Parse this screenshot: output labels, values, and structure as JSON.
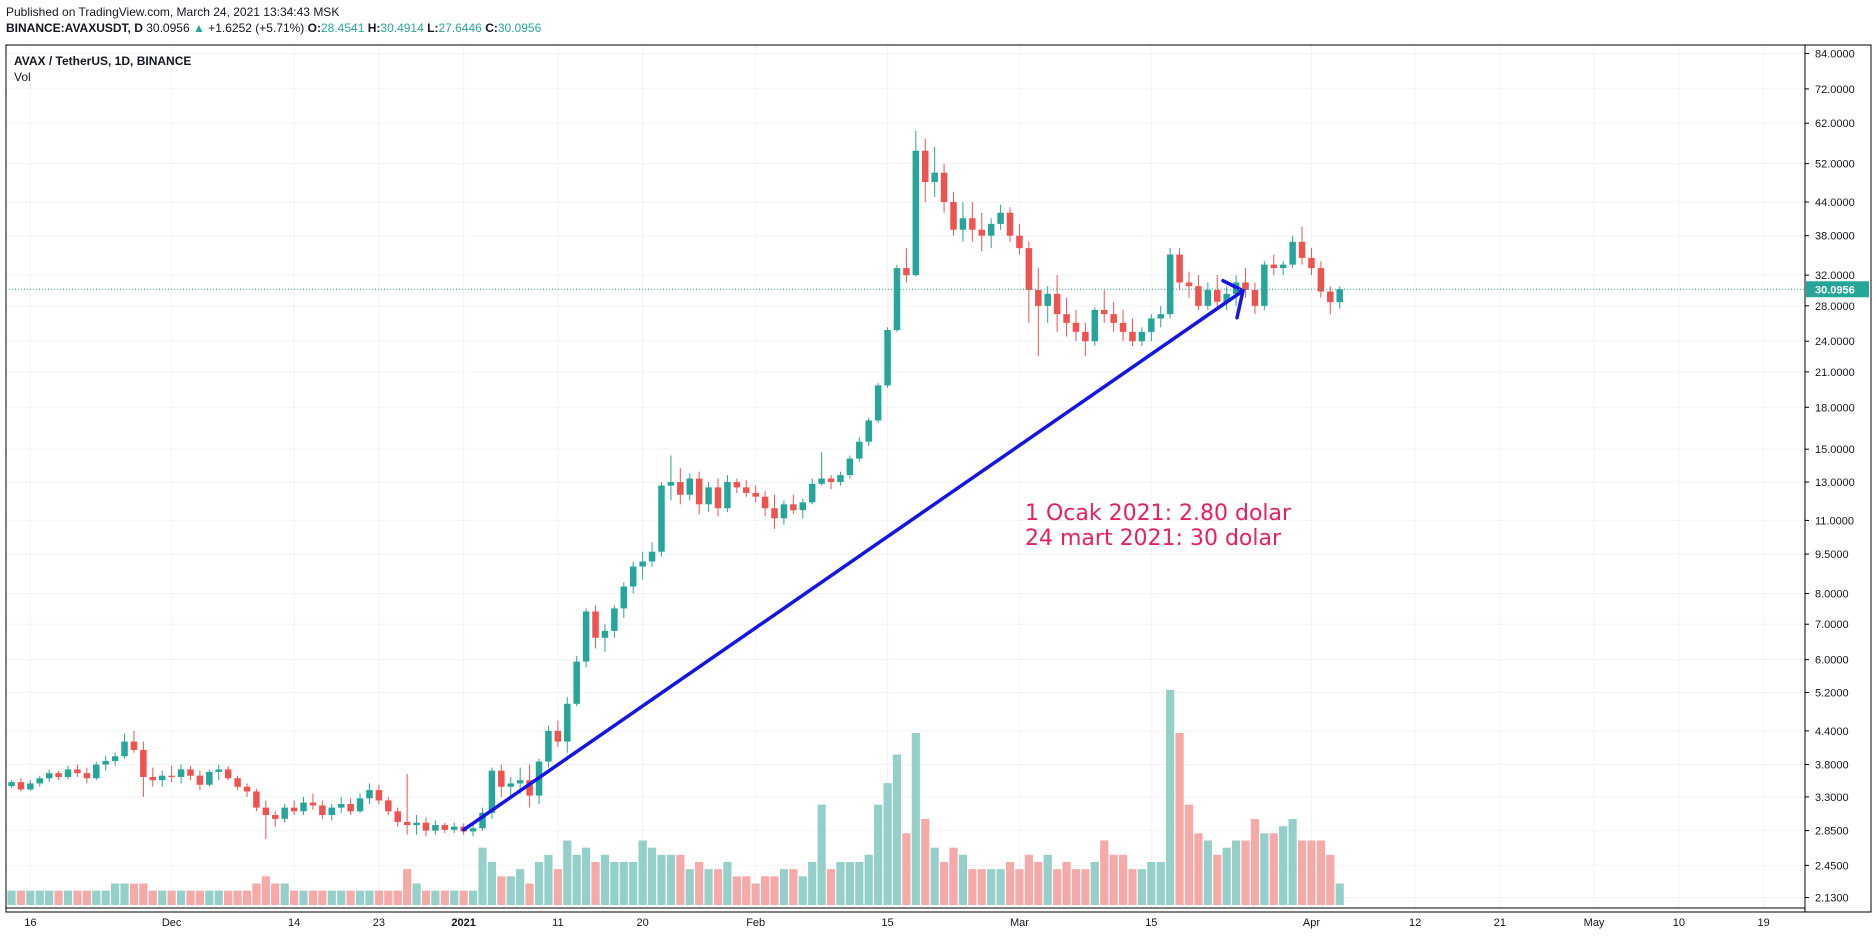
{
  "header": {
    "published": "Published on TradingView.com, March 24, 2021 13:34:43 MSK",
    "symbol": "BINANCE:AVAXUSDT, D",
    "last": "30.0956",
    "change_arrow": "▲",
    "change": "+1.6252 (+5.71%)",
    "o_label": "O:",
    "o": "28.4541",
    "h_label": "H:",
    "h": "30.4914",
    "l_label": "L:",
    "l": "27.6446",
    "c_label": "C:",
    "c": "30.0956"
  },
  "legend": {
    "title": "AVAX / TetherUS, 1D, BINANCE",
    "vol": "Vol"
  },
  "annotation": {
    "line1": "1 Ocak 2021: 2.80 dolar",
    "line2": "24 mart 2021: 30 dolar",
    "color": "#e91e63"
  },
  "colors": {
    "up": "#26a69a",
    "down": "#ef5350",
    "vol_up": "#94cfc9",
    "vol_down": "#f5a9a8",
    "trend": "#1414e6",
    "price_badge": "#26a69a"
  },
  "chart_data": {
    "type": "candlestick",
    "scale": "log",
    "y_ticks": [
      "84.0000",
      "72.0000",
      "62.0000",
      "52.0000",
      "44.0000",
      "38.0000",
      "32.0000",
      "28.0000",
      "24.0000",
      "21.0000",
      "18.0000",
      "15.0000",
      "13.0000",
      "11.0000",
      "9.5000",
      "8.0000",
      "7.0000",
      "6.0000",
      "5.2000",
      "4.4000",
      "3.8000",
      "3.3000",
      "2.8500",
      "2.4500",
      "2.1300"
    ],
    "x_ticks": [
      "16",
      "Dec",
      "14",
      "23",
      "2021",
      "11",
      "20",
      "Feb",
      "15",
      "Mar",
      "15",
      "Apr",
      "12",
      "21",
      "May",
      "10",
      "19"
    ],
    "x_tick_dates": [
      "2020-11-16",
      "2020-12-01",
      "2020-12-14",
      "2020-12-23",
      "2021-01-01",
      "2021-01-11",
      "2021-01-20",
      "2021-02-01",
      "2021-02-15",
      "2021-03-01",
      "2021-03-15",
      "2021-04-01",
      "2021-04-12",
      "2021-04-21",
      "2021-05-01",
      "2021-05-10",
      "2021-05-19"
    ],
    "last_price": "30.0956",
    "start_date": "2020-11-14",
    "candles": [
      [
        3.46,
        3.55,
        3.43,
        3.52,
        2
      ],
      [
        3.52,
        3.58,
        3.38,
        3.41,
        2
      ],
      [
        3.41,
        3.55,
        3.39,
        3.5,
        2
      ],
      [
        3.5,
        3.62,
        3.45,
        3.58,
        2
      ],
      [
        3.58,
        3.72,
        3.52,
        3.66,
        2
      ],
      [
        3.66,
        3.7,
        3.55,
        3.6,
        2
      ],
      [
        3.6,
        3.78,
        3.56,
        3.72,
        2
      ],
      [
        3.72,
        3.8,
        3.6,
        3.66,
        2
      ],
      [
        3.66,
        3.75,
        3.5,
        3.58,
        2
      ],
      [
        3.58,
        3.85,
        3.55,
        3.8,
        2
      ],
      [
        3.8,
        3.95,
        3.7,
        3.86,
        2
      ],
      [
        3.86,
        4.0,
        3.78,
        3.94,
        3
      ],
      [
        3.94,
        4.35,
        3.9,
        4.2,
        3
      ],
      [
        4.2,
        4.4,
        4.0,
        4.05,
        3
      ],
      [
        4.05,
        4.2,
        3.3,
        3.6,
        3
      ],
      [
        3.6,
        3.75,
        3.45,
        3.55,
        2
      ],
      [
        3.55,
        3.7,
        3.45,
        3.62,
        2
      ],
      [
        3.62,
        3.78,
        3.52,
        3.6,
        2
      ],
      [
        3.6,
        3.8,
        3.5,
        3.72,
        2
      ],
      [
        3.72,
        3.78,
        3.55,
        3.62,
        2
      ],
      [
        3.62,
        3.7,
        3.4,
        3.48,
        2
      ],
      [
        3.48,
        3.72,
        3.45,
        3.68,
        2
      ],
      [
        3.68,
        3.8,
        3.55,
        3.72,
        2
      ],
      [
        3.72,
        3.78,
        3.55,
        3.58,
        2
      ],
      [
        3.58,
        3.62,
        3.4,
        3.45,
        2
      ],
      [
        3.45,
        3.5,
        3.3,
        3.38,
        2
      ],
      [
        3.38,
        3.42,
        3.1,
        3.15,
        3
      ],
      [
        3.15,
        3.25,
        2.75,
        3.05,
        4
      ],
      [
        3.05,
        3.1,
        2.9,
        3.0,
        3
      ],
      [
        3.0,
        3.2,
        2.95,
        3.15,
        3
      ],
      [
        3.15,
        3.25,
        3.05,
        3.1,
        2
      ],
      [
        3.1,
        3.3,
        3.05,
        3.22,
        2
      ],
      [
        3.22,
        3.35,
        3.12,
        3.18,
        2
      ],
      [
        3.18,
        3.25,
        3.0,
        3.05,
        2
      ],
      [
        3.05,
        3.2,
        2.98,
        3.15,
        2
      ],
      [
        3.15,
        3.3,
        3.08,
        3.2,
        2
      ],
      [
        3.2,
        3.28,
        3.05,
        3.1,
        2
      ],
      [
        3.1,
        3.35,
        3.08,
        3.28,
        2
      ],
      [
        3.28,
        3.5,
        3.2,
        3.4,
        2
      ],
      [
        3.4,
        3.48,
        3.2,
        3.25,
        2
      ],
      [
        3.25,
        3.3,
        3.05,
        3.1,
        2
      ],
      [
        3.1,
        3.15,
        2.9,
        2.96,
        2
      ],
      [
        2.96,
        3.65,
        2.8,
        2.92,
        5
      ],
      [
        2.92,
        3.05,
        2.8,
        2.95,
        3
      ],
      [
        2.95,
        3.02,
        2.78,
        2.85,
        2
      ],
      [
        2.85,
        2.98,
        2.8,
        2.92,
        2
      ],
      [
        2.92,
        2.95,
        2.82,
        2.86,
        2
      ],
      [
        2.86,
        2.95,
        2.82,
        2.9,
        2
      ],
      [
        2.9,
        2.94,
        2.8,
        2.84,
        2
      ],
      [
        2.84,
        2.92,
        2.78,
        2.88,
        2
      ],
      [
        2.88,
        3.15,
        2.85,
        3.08,
        8
      ],
      [
        3.08,
        3.75,
        3.0,
        3.7,
        6
      ],
      [
        3.7,
        3.8,
        3.3,
        3.45,
        4
      ],
      [
        3.45,
        3.6,
        3.3,
        3.5,
        4
      ],
      [
        3.5,
        3.75,
        3.35,
        3.55,
        5
      ],
      [
        3.55,
        3.8,
        3.15,
        3.32,
        3
      ],
      [
        3.32,
        3.9,
        3.2,
        3.85,
        6
      ],
      [
        3.85,
        4.5,
        3.75,
        4.4,
        7
      ],
      [
        4.4,
        4.6,
        4.1,
        4.2,
        5
      ],
      [
        4.2,
        5.1,
        4.0,
        4.95,
        9
      ],
      [
        4.95,
        6.1,
        4.9,
        5.95,
        7
      ],
      [
        5.95,
        7.5,
        5.8,
        7.4,
        8
      ],
      [
        7.4,
        7.6,
        6.3,
        6.6,
        6
      ],
      [
        6.6,
        7.0,
        6.2,
        6.8,
        7
      ],
      [
        6.8,
        7.6,
        6.6,
        7.5,
        6
      ],
      [
        7.5,
        8.4,
        7.2,
        8.25,
        6
      ],
      [
        8.25,
        9.2,
        8.0,
        9.0,
        6
      ],
      [
        9.0,
        9.6,
        8.5,
        9.2,
        9
      ],
      [
        9.2,
        10.0,
        9.0,
        9.6,
        8
      ],
      [
        9.6,
        13.0,
        9.4,
        12.8,
        7
      ],
      [
        12.8,
        14.6,
        12.0,
        13.0,
        7
      ],
      [
        13.0,
        13.8,
        11.8,
        12.3,
        7
      ],
      [
        12.3,
        13.5,
        12.0,
        13.2,
        5
      ],
      [
        13.2,
        13.6,
        11.3,
        11.8,
        6
      ],
      [
        11.8,
        13.0,
        11.4,
        12.7,
        5
      ],
      [
        12.7,
        13.2,
        11.2,
        11.6,
        5
      ],
      [
        11.6,
        13.4,
        11.4,
        13.0,
        6
      ],
      [
        13.0,
        13.2,
        12.4,
        12.7,
        4
      ],
      [
        12.7,
        13.1,
        12.2,
        12.4,
        4
      ],
      [
        12.4,
        12.8,
        11.9,
        12.2,
        3
      ],
      [
        12.2,
        12.5,
        11.2,
        11.6,
        4
      ],
      [
        11.6,
        12.3,
        10.6,
        11.1,
        4
      ],
      [
        11.1,
        12.0,
        10.8,
        11.8,
        5
      ],
      [
        11.8,
        12.3,
        11.3,
        11.5,
        5
      ],
      [
        11.5,
        12.1,
        11.1,
        11.9,
        4
      ],
      [
        11.9,
        13.2,
        11.8,
        12.9,
        6
      ],
      [
        12.9,
        14.8,
        12.8,
        13.2,
        14
      ],
      [
        13.2,
        13.4,
        12.6,
        13.0,
        5
      ],
      [
        13.0,
        13.6,
        12.8,
        13.4,
        6
      ],
      [
        13.4,
        14.6,
        13.2,
        14.4,
        6
      ],
      [
        14.4,
        15.8,
        14.2,
        15.5,
        6
      ],
      [
        15.5,
        17.2,
        15.2,
        17.0,
        7
      ],
      [
        17.0,
        20.0,
        16.8,
        19.8,
        14
      ],
      [
        19.8,
        25.5,
        19.6,
        25.2,
        17
      ],
      [
        25.2,
        33.5,
        25.0,
        33.0,
        21
      ],
      [
        33.0,
        36.0,
        31.0,
        32.0,
        10
      ],
      [
        32.0,
        60.0,
        31.8,
        55.0,
        24
      ],
      [
        55.0,
        58.0,
        44.0,
        48.0,
        12
      ],
      [
        48.0,
        56.0,
        45.0,
        50.0,
        8
      ],
      [
        50.0,
        52.0,
        42.0,
        44.0,
        6
      ],
      [
        44.0,
        46.0,
        38.0,
        39.0,
        8
      ],
      [
        39.0,
        44.0,
        37.0,
        41.0,
        7
      ],
      [
        41.0,
        44.0,
        37.0,
        39.0,
        5
      ],
      [
        39.0,
        42.0,
        35.5,
        38.0,
        5
      ],
      [
        38.0,
        41.0,
        36.0,
        40.0,
        5
      ],
      [
        40.0,
        43.5,
        39.0,
        42.0,
        5
      ],
      [
        42.0,
        43.0,
        37.0,
        38.0,
        6
      ],
      [
        38.0,
        40.0,
        35.0,
        36.0,
        5
      ],
      [
        36.0,
        37.0,
        26.0,
        30.0,
        7
      ],
      [
        30.0,
        33.0,
        22.5,
        28.0,
        6
      ],
      [
        28.0,
        30.5,
        26.0,
        29.5,
        7
      ],
      [
        29.5,
        32.0,
        25.0,
        27.0,
        5
      ],
      [
        27.0,
        29.0,
        24.5,
        26.0,
        6
      ],
      [
        26.0,
        27.5,
        24.0,
        25.0,
        5
      ],
      [
        25.0,
        26.0,
        22.5,
        24.0,
        5
      ],
      [
        24.0,
        27.8,
        23.5,
        27.5,
        6
      ],
      [
        27.5,
        30.0,
        26.0,
        27.0,
        9
      ],
      [
        27.0,
        28.5,
        25.0,
        26.0,
        7
      ],
      [
        26.0,
        27.5,
        24.0,
        25.0,
        7
      ],
      [
        25.0,
        26.5,
        23.5,
        24.0,
        5
      ],
      [
        24.0,
        25.5,
        23.5,
        25.0,
        5
      ],
      [
        25.0,
        27.0,
        24.0,
        26.5,
        6
      ],
      [
        26.5,
        28.0,
        25.5,
        27.0,
        6
      ],
      [
        27.0,
        36.0,
        26.5,
        35.0,
        30
      ],
      [
        35.0,
        36.0,
        30.0,
        31.0,
        24
      ],
      [
        31.0,
        32.5,
        29.0,
        30.5,
        14
      ],
      [
        30.5,
        32.0,
        27.5,
        28.0,
        10
      ],
      [
        28.0,
        31.0,
        27.5,
        30.0,
        9
      ],
      [
        30.0,
        32.0,
        27.5,
        28.5,
        7
      ],
      [
        28.5,
        30.5,
        27.5,
        29.5,
        8
      ],
      [
        29.5,
        32.0,
        28.0,
        31.0,
        9
      ],
      [
        31.0,
        33.0,
        29.0,
        30.0,
        9
      ],
      [
        30.0,
        31.0,
        27.0,
        28.0,
        12
      ],
      [
        28.0,
        34.0,
        27.5,
        33.5,
        10
      ],
      [
        33.5,
        35.0,
        32.0,
        33.0,
        10
      ],
      [
        33.0,
        34.0,
        32.0,
        33.5,
        11
      ],
      [
        33.5,
        38.0,
        33.0,
        37.0,
        12
      ],
      [
        37.0,
        39.5,
        33.5,
        34.5,
        9
      ],
      [
        34.5,
        36.0,
        32.0,
        33.0,
        9
      ],
      [
        33.0,
        34.0,
        29.0,
        29.8,
        9
      ],
      [
        29.8,
        30.5,
        27.0,
        28.45,
        7
      ],
      [
        28.45,
        30.49,
        27.64,
        30.1,
        3
      ]
    ]
  }
}
